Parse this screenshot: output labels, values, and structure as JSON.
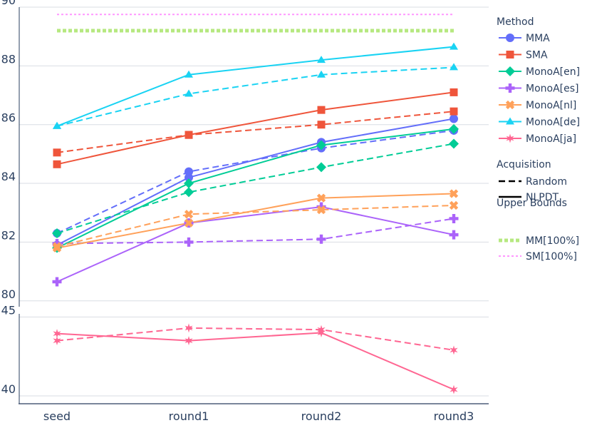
{
  "chart_data": {
    "type": "line",
    "categories": [
      "seed",
      "round1",
      "round2",
      "round3"
    ],
    "upper_panel": {
      "ylim": [
        79.8,
        90.0
      ],
      "yticks": [
        80,
        82,
        84,
        86,
        88,
        90
      ]
    },
    "lower_panel": {
      "ylim": [
        39.5,
        45.2
      ],
      "yticks": [
        40,
        45
      ]
    },
    "grid": true,
    "legend_position": "right",
    "legend_groups": [
      {
        "title": "Method",
        "entries": [
          "MMA",
          "SMA",
          "MonoA[en]",
          "MonoA[es]",
          "MonoA[nl]",
          "MonoA[de]",
          "MonoA[ja]"
        ]
      },
      {
        "title": "Acquisition",
        "entries": [
          "Random",
          "NLPDT"
        ]
      },
      {
        "title": "Upper Bounds",
        "entries": [
          "MM[100%]",
          "SM[100%]"
        ]
      }
    ],
    "series": [
      {
        "name": "MMA",
        "panel": "upper",
        "color": "#636efa",
        "marker": "circle",
        "acquisition": "Random",
        "values": [
          82.3,
          84.4,
          85.2,
          85.8
        ]
      },
      {
        "name": "MMA",
        "panel": "upper",
        "color": "#636efa",
        "marker": "circle",
        "acquisition": "NLPDT",
        "values": [
          81.9,
          84.2,
          85.4,
          86.2
        ]
      },
      {
        "name": "SMA",
        "panel": "upper",
        "color": "#ef553b",
        "marker": "square",
        "acquisition": "Random",
        "values": [
          85.05,
          85.65,
          86.0,
          86.45
        ]
      },
      {
        "name": "SMA",
        "panel": "upper",
        "color": "#ef553b",
        "marker": "square",
        "acquisition": "NLPDT",
        "values": [
          84.65,
          85.65,
          86.5,
          87.1
        ]
      },
      {
        "name": "MonoA[en]",
        "panel": "upper",
        "color": "#00cc96",
        "marker": "diamond",
        "acquisition": "Random",
        "values": [
          82.3,
          83.7,
          84.55,
          85.35
        ]
      },
      {
        "name": "MonoA[en]",
        "panel": "upper",
        "color": "#00cc96",
        "marker": "diamond",
        "acquisition": "NLPDT",
        "values": [
          81.8,
          84.0,
          85.3,
          85.85
        ]
      },
      {
        "name": "MonoA[es]",
        "panel": "upper",
        "color": "#ab63fa",
        "marker": "cross",
        "acquisition": "Random",
        "values": [
          81.95,
          82.0,
          82.1,
          82.8
        ]
      },
      {
        "name": "MonoA[es]",
        "panel": "upper",
        "color": "#ab63fa",
        "marker": "cross",
        "acquisition": "NLPDT",
        "values": [
          80.65,
          82.65,
          83.2,
          82.25
        ]
      },
      {
        "name": "MonoA[nl]",
        "panel": "upper",
        "color": "#ffa15a",
        "marker": "x",
        "acquisition": "Random",
        "values": [
          81.85,
          82.95,
          83.1,
          83.25
        ]
      },
      {
        "name": "MonoA[nl]",
        "panel": "upper",
        "color": "#ffa15a",
        "marker": "x",
        "acquisition": "NLPDT",
        "values": [
          81.8,
          82.65,
          83.5,
          83.65
        ]
      },
      {
        "name": "MonoA[de]",
        "panel": "upper",
        "color": "#19d3f3",
        "marker": "triangle",
        "acquisition": "Random",
        "values": [
          85.95,
          87.05,
          87.7,
          87.95
        ]
      },
      {
        "name": "MonoA[de]",
        "panel": "upper",
        "color": "#19d3f3",
        "marker": "triangle",
        "acquisition": "NLPDT",
        "values": [
          85.95,
          87.7,
          88.2,
          88.65
        ]
      },
      {
        "name": "MonoA[ja]",
        "panel": "lower",
        "color": "#ff6692",
        "marker": "star",
        "acquisition": "Random",
        "values": [
          43.5,
          44.3,
          44.2,
          42.9
        ]
      },
      {
        "name": "MonoA[ja]",
        "panel": "lower",
        "color": "#ff6692",
        "marker": "star",
        "acquisition": "NLPDT",
        "values": [
          43.95,
          43.5,
          44.0,
          40.4
        ]
      }
    ],
    "upper_bounds": [
      {
        "name": "MM[100%]",
        "color": "#b6e880",
        "value": 89.2
      },
      {
        "name": "SM[100%]",
        "color": "#ff97ff",
        "value": 89.75
      }
    ]
  }
}
